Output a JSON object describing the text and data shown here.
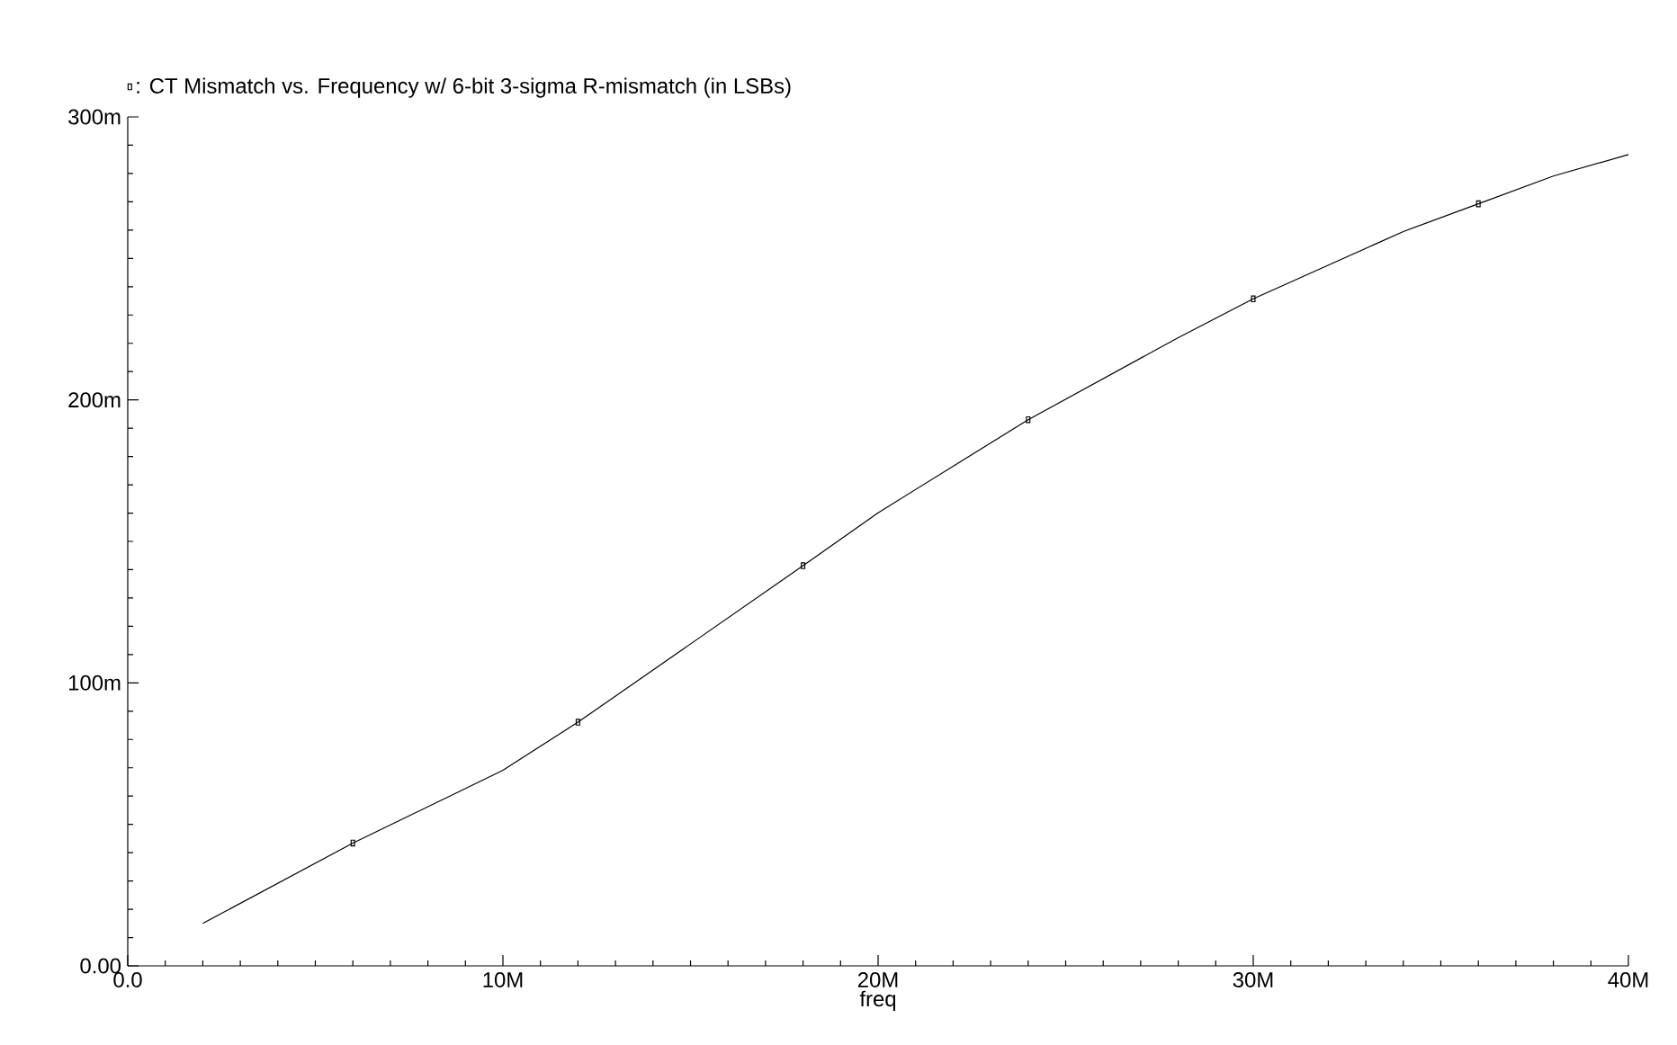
{
  "chart_data": {
    "type": "line",
    "xlabel": "freq",
    "xlim": [
      0,
      40000000
    ],
    "ylim": [
      0,
      300
    ],
    "xticks": [
      {
        "value": 0,
        "label": "0.0"
      },
      {
        "value": 10000000,
        "label": "10M"
      },
      {
        "value": 20000000,
        "label": "20M"
      },
      {
        "value": 30000000,
        "label": "30M"
      },
      {
        "value": 40000000,
        "label": "40M"
      }
    ],
    "yticks": [
      {
        "value": 0,
        "label": "0.00"
      },
      {
        "value": 100,
        "label": "100m"
      },
      {
        "value": 200,
        "label": "200m"
      },
      {
        "value": 300,
        "label": "300m"
      }
    ],
    "grid": false,
    "legend": "top left",
    "series": [
      {
        "color": "#000000",
        "x": [
          2000000,
          6000000,
          10000000,
          12000000,
          18000000,
          20000000,
          24000000,
          28000000,
          30000000,
          34000000,
          36000000,
          38000000,
          40000000
        ],
        "values": [
          15,
          43.4,
          69.1,
          86.1,
          141.4,
          160.1,
          193,
          222,
          235.7,
          259.5,
          269.3,
          279.1,
          286.7
        ]
      },
      {
        "type": "scatter",
        "name": ": CT Mismatch vs. Frequency w/ 6-bit 3-sigma R-mismatch (in LSBs)",
        "color": "#000000",
        "marker": "square",
        "x": [
          6000000,
          12000000,
          18000000,
          24000000,
          30000000,
          36000000
        ],
        "values": [
          43.4,
          86.1,
          141.4,
          193,
          235.7,
          269.3
        ]
      }
    ]
  }
}
